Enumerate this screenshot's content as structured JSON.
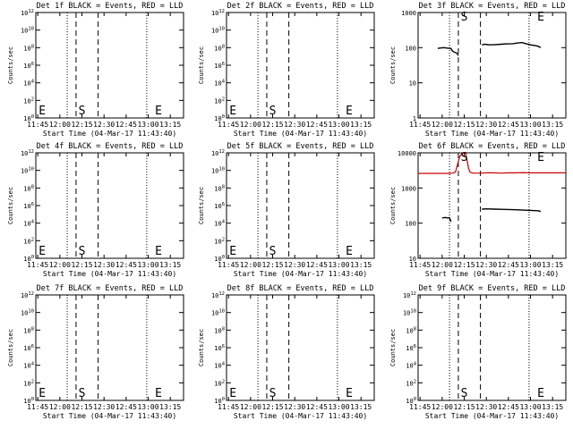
{
  "colors": {
    "events": "#000000",
    "lld": "#cc0000",
    "background": "#ffffff"
  },
  "chart_data": [
    {
      "type": "line",
      "title": "Det 1f BLACK = Events, RED = LLD",
      "xlabel": "Start Time (04-Mar-17 11:43:40)",
      "ylabel": "Counts/sec",
      "xlim": [
        "11:43:40",
        "13:24:00"
      ],
      "xticks": [
        "11:45",
        "12:00",
        "12:15",
        "12:30",
        "12:45",
        "13:00",
        "13:15"
      ],
      "ylim": [
        1,
        1000000000000
      ],
      "yscale": "log",
      "yticks": [
        "10^0",
        "10^2",
        "10^4",
        "10^6",
        "10^8",
        "10^10",
        "10^12"
      ],
      "dotted_lines": [
        "12:05",
        "12:59"
      ],
      "dashed_lines": [
        "12:11",
        "12:26"
      ],
      "markers": [
        {
          "label": "E",
          "x": "11:45",
          "y": 8
        },
        {
          "label": "S",
          "x": "12:12",
          "y": 8
        },
        {
          "label": "E",
          "x": "13:04",
          "y": 8
        }
      ],
      "series": []
    },
    {
      "type": "line",
      "title": "Det 2f BLACK = Events, RED = LLD",
      "xlabel": "Start Time (04-Mar-17 11:43:40)",
      "ylabel": "Counts/sec",
      "xlim": [
        "11:43:40",
        "13:24:00"
      ],
      "xticks": [
        "11:45",
        "12:00",
        "12:15",
        "12:30",
        "12:45",
        "13:00",
        "13:15"
      ],
      "ylim": [
        1,
        1000000000000
      ],
      "yscale": "log",
      "yticks": [
        "10^0",
        "10^2",
        "10^4",
        "10^6",
        "10^8",
        "10^10",
        "10^12"
      ],
      "dotted_lines": [
        "12:05",
        "12:59"
      ],
      "dashed_lines": [
        "12:11",
        "12:26"
      ],
      "markers": [
        {
          "label": "E",
          "x": "11:45",
          "y": 8
        },
        {
          "label": "S",
          "x": "12:12",
          "y": 8
        },
        {
          "label": "E",
          "x": "13:04",
          "y": 8
        }
      ],
      "series": []
    },
    {
      "type": "line",
      "title": "Det 3f BLACK = Events, RED = LLD",
      "xlabel": "Start Time (04-Mar-17 11:43:40)",
      "ylabel": "Counts/sec",
      "xlim": [
        "11:43:40",
        "13:24:00"
      ],
      "xticks": [
        "11:45",
        "12:00",
        "12:15",
        "12:30",
        "12:45",
        "13:00",
        "13:15"
      ],
      "ylim": [
        1,
        1000
      ],
      "yscale": "log",
      "yticks": [
        "1",
        "10",
        "100",
        "1000"
      ],
      "dotted_lines": [
        "12:05",
        "12:59"
      ],
      "dashed_lines": [
        "12:11",
        "12:26"
      ],
      "markers": [
        {
          "label": "S",
          "x": "12:12",
          "y": 800
        },
        {
          "label": "E",
          "x": "13:04",
          "y": 800
        }
      ],
      "series": [
        {
          "color": "#000000",
          "x": [
            "11:57",
            "11:59",
            "12:01",
            "12:04",
            "12:06",
            "12:07",
            "12:08"
          ],
          "y": [
            95,
            98,
            100,
            97,
            95,
            80,
            75
          ]
        },
        {
          "color": "#000000",
          "x": [
            "12:08",
            "12:10",
            "12:11"
          ],
          "y": [
            75,
            70,
            60
          ]
        },
        {
          "color": "#000000",
          "x": [
            "12:27",
            "12:29",
            "12:32",
            "12:36",
            "12:40",
            "12:44",
            "12:48",
            "12:51",
            "12:54",
            "12:57",
            "13:00",
            "13:03",
            "13:05",
            "13:07"
          ],
          "y": [
            120,
            125,
            120,
            122,
            125,
            128,
            130,
            135,
            140,
            130,
            120,
            115,
            110,
            100
          ]
        }
      ]
    },
    {
      "type": "line",
      "title": "Det 4f BLACK = Events, RED = LLD",
      "xlabel": "Start Time (04-Mar-17 11:43:40)",
      "ylabel": "Counts/sec",
      "xlim": [
        "11:43:40",
        "13:24:00"
      ],
      "xticks": [
        "11:45",
        "12:00",
        "12:15",
        "12:30",
        "12:45",
        "13:00",
        "13:15"
      ],
      "ylim": [
        1,
        1000000000000
      ],
      "yscale": "log",
      "yticks": [
        "10^0",
        "10^2",
        "10^4",
        "10^6",
        "10^8",
        "10^10",
        "10^12"
      ],
      "dotted_lines": [
        "12:05",
        "12:59"
      ],
      "dashed_lines": [
        "12:11",
        "12:26"
      ],
      "markers": [
        {
          "label": "E",
          "x": "11:45",
          "y": 8
        },
        {
          "label": "S",
          "x": "12:12",
          "y": 8
        },
        {
          "label": "E",
          "x": "13:04",
          "y": 8
        }
      ],
      "series": []
    },
    {
      "type": "line",
      "title": "Det 5f BLACK = Events, RED = LLD",
      "xlabel": "Start Time (04-Mar-17 11:43:40)",
      "ylabel": "Counts/sec",
      "xlim": [
        "11:43:40",
        "13:24:00"
      ],
      "xticks": [
        "11:45",
        "12:00",
        "12:15",
        "12:30",
        "12:45",
        "13:00",
        "13:15"
      ],
      "ylim": [
        1,
        1000000000000
      ],
      "yscale": "log",
      "yticks": [
        "10^0",
        "10^2",
        "10^4",
        "10^6",
        "10^8",
        "10^10",
        "10^12"
      ],
      "dotted_lines": [
        "12:05",
        "12:59"
      ],
      "dashed_lines": [
        "12:11",
        "12:26"
      ],
      "markers": [
        {
          "label": "E",
          "x": "11:45",
          "y": 8
        },
        {
          "label": "S",
          "x": "12:12",
          "y": 8
        },
        {
          "label": "E",
          "x": "13:04",
          "y": 8
        }
      ],
      "series": []
    },
    {
      "type": "line",
      "title": "Det 6f BLACK = Events, RED = LLD",
      "xlabel": "Start Time (04-Mar-17 11:43:40)",
      "ylabel": "Counts/sec",
      "xlim": [
        "11:43:40",
        "13:24:00"
      ],
      "xticks": [
        "11:45",
        "12:00",
        "12:15",
        "12:30",
        "12:45",
        "13:00",
        "13:15"
      ],
      "ylim": [
        10,
        10000
      ],
      "yscale": "log",
      "yticks": [
        "10",
        "100",
        "1000",
        "10000"
      ],
      "dotted_lines": [
        "12:05",
        "12:59"
      ],
      "dashed_lines": [
        "12:11",
        "12:26"
      ],
      "markers": [
        {
          "label": "S",
          "x": "12:12",
          "y": 8000
        },
        {
          "label": "E",
          "x": "13:04",
          "y": 8000
        }
      ],
      "series": [
        {
          "color": "#cc0000",
          "x": [
            "11:43:40",
            "11:50",
            "11:55",
            "12:00",
            "12:05",
            "12:07",
            "12:09",
            "12:10",
            "12:12",
            "12:14",
            "12:16",
            "12:17",
            "12:18",
            "12:19",
            "12:21",
            "12:24",
            "12:27",
            "12:30",
            "12:35",
            "12:40",
            "12:45",
            "12:50",
            "12:55",
            "13:00",
            "13:05",
            "13:10",
            "13:15",
            "13:24"
          ],
          "y": [
            2600,
            2600,
            2600,
            2600,
            2600,
            2650,
            2800,
            4000,
            8000,
            10000,
            9500,
            6000,
            3500,
            2800,
            2650,
            2650,
            2650,
            2700,
            2700,
            2650,
            2700,
            2700,
            2750,
            2700,
            2700,
            2700,
            2700,
            2700
          ]
        },
        {
          "color": "#000000",
          "x": [
            "12:00",
            "12:02",
            "12:04",
            "12:05",
            "12:06"
          ],
          "y": [
            140,
            145,
            140,
            142,
            110
          ]
        },
        {
          "color": "#000000",
          "x": [
            "12:27",
            "12:30",
            "12:35",
            "12:40",
            "12:45",
            "12:50",
            "12:55",
            "13:00",
            "13:05",
            "13:07"
          ],
          "y": [
            250,
            255,
            250,
            248,
            245,
            240,
            235,
            230,
            225,
            215
          ]
        }
      ]
    },
    {
      "type": "line",
      "title": "Det 7f BLACK = Events, RED = LLD",
      "xlabel": "Start Time (04-Mar-17 11:43:40)",
      "ylabel": "Counts/sec",
      "xlim": [
        "11:43:40",
        "13:24:00"
      ],
      "xticks": [
        "11:45",
        "12:00",
        "12:15",
        "12:30",
        "12:45",
        "13:00",
        "13:15"
      ],
      "ylim": [
        1,
        1000000000000
      ],
      "yscale": "log",
      "yticks": [
        "10^0",
        "10^2",
        "10^4",
        "10^6",
        "10^8",
        "10^10",
        "10^12"
      ],
      "dotted_lines": [
        "12:05",
        "12:59"
      ],
      "dashed_lines": [
        "12:11",
        "12:26"
      ],
      "markers": [
        {
          "label": "E",
          "x": "11:45",
          "y": 8
        },
        {
          "label": "S",
          "x": "12:12",
          "y": 8
        },
        {
          "label": "E",
          "x": "13:04",
          "y": 8
        }
      ],
      "series": []
    },
    {
      "type": "line",
      "title": "Det 8f BLACK = Events, RED = LLD",
      "xlabel": "Start Time (04-Mar-17 11:43:40)",
      "ylabel": "Counts/sec",
      "xlim": [
        "11:43:40",
        "13:24:00"
      ],
      "xticks": [
        "11:45",
        "12:00",
        "12:15",
        "12:30",
        "12:45",
        "13:00",
        "13:15"
      ],
      "ylim": [
        1,
        1000000000000
      ],
      "yscale": "log",
      "yticks": [
        "10^0",
        "10^2",
        "10^4",
        "10^6",
        "10^8",
        "10^10",
        "10^12"
      ],
      "dotted_lines": [
        "12:05",
        "12:59"
      ],
      "dashed_lines": [
        "12:11",
        "12:26"
      ],
      "markers": [
        {
          "label": "E",
          "x": "11:45",
          "y": 8
        },
        {
          "label": "S",
          "x": "12:12",
          "y": 8
        },
        {
          "label": "E",
          "x": "13:04",
          "y": 8
        }
      ],
      "series": []
    },
    {
      "type": "line",
      "title": "Det 9f BLACK = Events, RED = LLD",
      "xlabel": "Start Time (04-Mar-17 11:43:40)",
      "ylabel": "Counts/sec",
      "xlim": [
        "11:43:40",
        "13:24:00"
      ],
      "xticks": [
        "11:45",
        "12:00",
        "12:15",
        "12:30",
        "12:45",
        "13:00",
        "13:15"
      ],
      "ylim": [
        1,
        1000000000000
      ],
      "yscale": "log",
      "yticks": [
        "10^0",
        "10^2",
        "10^4",
        "10^6",
        "10^8",
        "10^10",
        "10^12"
      ],
      "dotted_lines": [
        "12:05",
        "12:59"
      ],
      "dashed_lines": [
        "12:11",
        "12:26"
      ],
      "markers": [
        {
          "label": "S",
          "x": "12:12",
          "y": 8
        },
        {
          "label": "E",
          "x": "13:04",
          "y": 8
        }
      ],
      "series": []
    }
  ]
}
